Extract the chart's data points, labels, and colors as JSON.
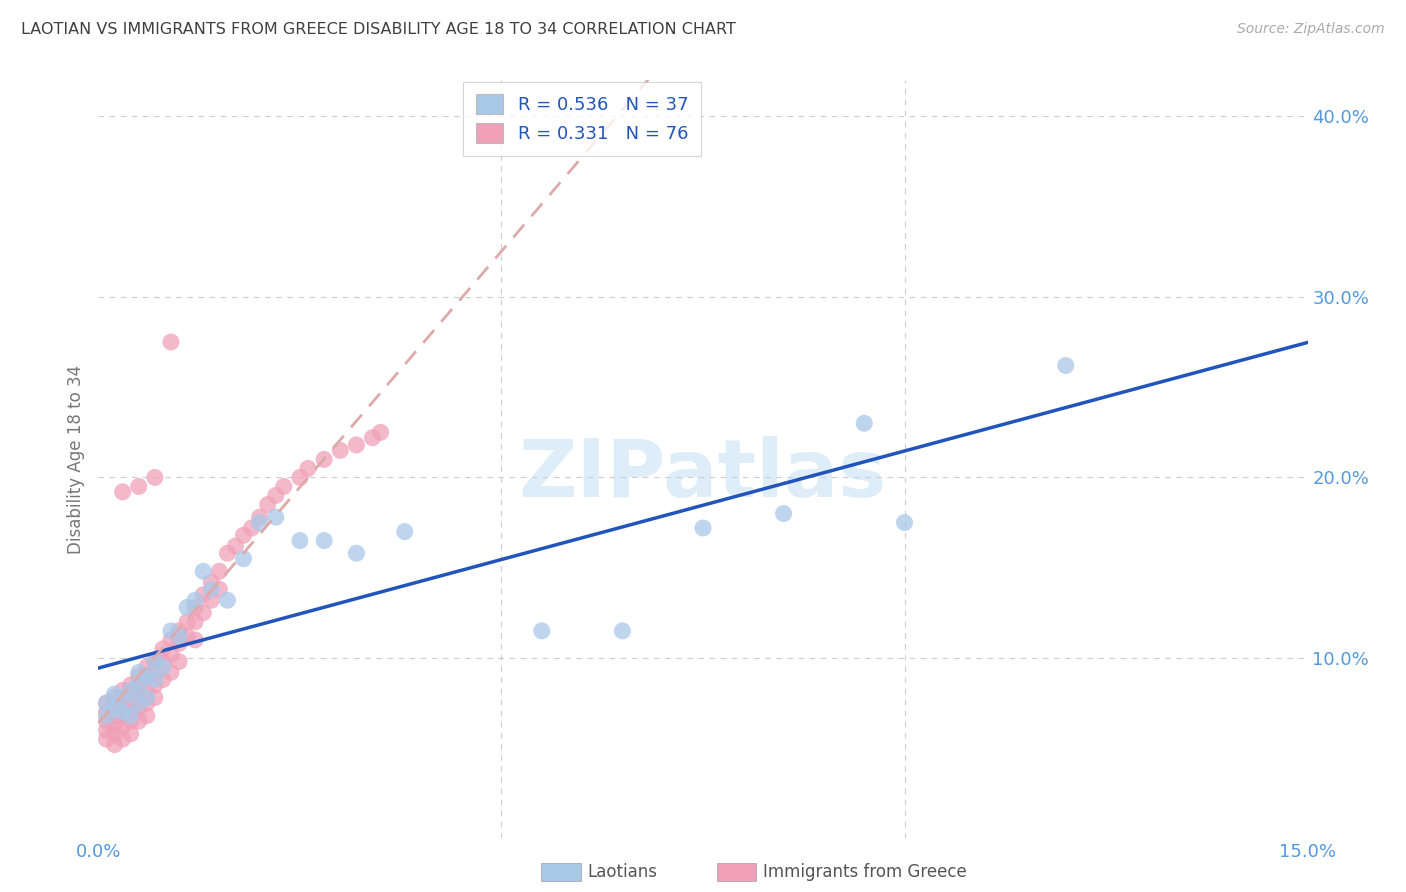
{
  "title": "LAOTIAN VS IMMIGRANTS FROM GREECE DISABILITY AGE 18 TO 34 CORRELATION CHART",
  "source": "Source: ZipAtlas.com",
  "ylabel": "Disability Age 18 to 34",
  "xlim": [
    0.0,
    0.15
  ],
  "ylim": [
    0.0,
    0.42
  ],
  "xticks": [
    0.0,
    0.05,
    0.1,
    0.15
  ],
  "xticklabels": [
    "0.0%",
    "",
    "",
    "15.0%"
  ],
  "yticks": [
    0.0,
    0.1,
    0.2,
    0.3,
    0.4
  ],
  "yticklabels": [
    "",
    "10.0%",
    "20.0%",
    "30.0%",
    "40.0%"
  ],
  "legend_r1": "0.536",
  "legend_n1": "37",
  "legend_r2": "0.331",
  "legend_n2": "76",
  "color_blue": "#a8c8e8",
  "color_pink": "#f0a0b8",
  "line_blue": "#2255bb",
  "line_pink_dashed": "#ddaaaa",
  "watermark": "ZIPatlas",
  "background_color": "#ffffff",
  "grid_color": "#cccccc",
  "title_color": "#404040",
  "source_color": "#aaaaaa",
  "axis_tick_color": "#5599dd",
  "ylabel_color": "#777777",
  "legend_text_color": "#2255bb",
  "bottom_legend_color": "#555555",
  "laotian_x": [
    0.001,
    0.001,
    0.002,
    0.002,
    0.003,
    0.003,
    0.004,
    0.004,
    0.005,
    0.005,
    0.005,
    0.006,
    0.006,
    0.007,
    0.007,
    0.008,
    0.009,
    0.01,
    0.011,
    0.012,
    0.013,
    0.014,
    0.016,
    0.018,
    0.02,
    0.022,
    0.025,
    0.028,
    0.032,
    0.038,
    0.055,
    0.065,
    0.075,
    0.085,
    0.095,
    0.1,
    0.12
  ],
  "laotian_y": [
    0.075,
    0.068,
    0.072,
    0.08,
    0.078,
    0.07,
    0.082,
    0.068,
    0.085,
    0.075,
    0.092,
    0.09,
    0.078,
    0.098,
    0.088,
    0.095,
    0.115,
    0.112,
    0.128,
    0.132,
    0.148,
    0.138,
    0.132,
    0.155,
    0.175,
    0.178,
    0.165,
    0.165,
    0.158,
    0.17,
    0.115,
    0.115,
    0.172,
    0.18,
    0.23,
    0.175,
    0.262
  ],
  "greece_x": [
    0.001,
    0.001,
    0.001,
    0.001,
    0.001,
    0.002,
    0.002,
    0.002,
    0.002,
    0.002,
    0.002,
    0.003,
    0.003,
    0.003,
    0.003,
    0.003,
    0.003,
    0.004,
    0.004,
    0.004,
    0.004,
    0.004,
    0.004,
    0.005,
    0.005,
    0.005,
    0.005,
    0.005,
    0.006,
    0.006,
    0.006,
    0.006,
    0.006,
    0.007,
    0.007,
    0.007,
    0.007,
    0.008,
    0.008,
    0.008,
    0.009,
    0.009,
    0.009,
    0.01,
    0.01,
    0.01,
    0.011,
    0.011,
    0.012,
    0.012,
    0.012,
    0.013,
    0.013,
    0.014,
    0.014,
    0.015,
    0.015,
    0.016,
    0.017,
    0.018,
    0.019,
    0.02,
    0.021,
    0.022,
    0.023,
    0.025,
    0.026,
    0.028,
    0.03,
    0.032,
    0.034,
    0.035,
    0.003,
    0.005,
    0.007,
    0.009
  ],
  "greece_y": [
    0.075,
    0.07,
    0.065,
    0.06,
    0.055,
    0.078,
    0.072,
    0.068,
    0.062,
    0.058,
    0.052,
    0.082,
    0.078,
    0.072,
    0.068,
    0.062,
    0.055,
    0.085,
    0.08,
    0.075,
    0.07,
    0.065,
    0.058,
    0.09,
    0.085,
    0.078,
    0.072,
    0.065,
    0.095,
    0.09,
    0.082,
    0.075,
    0.068,
    0.098,
    0.092,
    0.085,
    0.078,
    0.105,
    0.098,
    0.088,
    0.11,
    0.102,
    0.092,
    0.115,
    0.108,
    0.098,
    0.12,
    0.112,
    0.128,
    0.12,
    0.11,
    0.135,
    0.125,
    0.142,
    0.132,
    0.148,
    0.138,
    0.158,
    0.162,
    0.168,
    0.172,
    0.178,
    0.185,
    0.19,
    0.195,
    0.2,
    0.205,
    0.21,
    0.215,
    0.218,
    0.222,
    0.225,
    0.192,
    0.195,
    0.2,
    0.275
  ]
}
